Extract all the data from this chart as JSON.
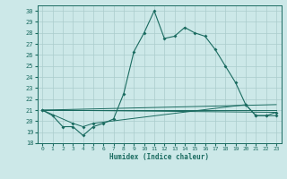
{
  "bg_color": "#cce8e8",
  "line_color": "#1a6b60",
  "grid_color": "#aacccc",
  "xlabel": "Humidex (Indice chaleur)",
  "xlim": [
    -0.5,
    23.5
  ],
  "ylim": [
    18,
    30.5
  ],
  "xticks": [
    0,
    1,
    2,
    3,
    4,
    5,
    6,
    7,
    8,
    9,
    10,
    11,
    12,
    13,
    14,
    15,
    16,
    17,
    18,
    19,
    20,
    21,
    22,
    23
  ],
  "yticks": [
    18,
    19,
    20,
    21,
    22,
    23,
    24,
    25,
    26,
    27,
    28,
    29,
    30
  ],
  "series1": [
    [
      0,
      21.0
    ],
    [
      1,
      20.5
    ],
    [
      2,
      19.5
    ],
    [
      3,
      19.5
    ],
    [
      4,
      18.7
    ],
    [
      5,
      19.5
    ],
    [
      6,
      19.8
    ],
    [
      7,
      20.2
    ],
    [
      8,
      22.5
    ],
    [
      9,
      26.3
    ],
    [
      10,
      28.0
    ],
    [
      11,
      30.0
    ],
    [
      12,
      27.5
    ],
    [
      13,
      27.7
    ],
    [
      14,
      28.5
    ],
    [
      15,
      28.0
    ],
    [
      16,
      27.7
    ],
    [
      17,
      26.5
    ],
    [
      18,
      25.0
    ],
    [
      19,
      23.5
    ],
    [
      20,
      21.5
    ],
    [
      21,
      20.5
    ],
    [
      22,
      20.5
    ],
    [
      23,
      20.5
    ]
  ],
  "line2": [
    [
      0,
      21.0
    ],
    [
      23,
      21.5
    ]
  ],
  "line3": [
    [
      0,
      21.0
    ],
    [
      23,
      21.0
    ]
  ],
  "line4": [
    [
      0,
      21.0
    ],
    [
      23,
      20.8
    ]
  ],
  "line5": [
    [
      0,
      21.0
    ],
    [
      3,
      19.8
    ],
    [
      4,
      19.5
    ],
    [
      5,
      19.8
    ],
    [
      20,
      21.5
    ],
    [
      21,
      20.5
    ],
    [
      22,
      20.5
    ],
    [
      23,
      20.8
    ]
  ]
}
